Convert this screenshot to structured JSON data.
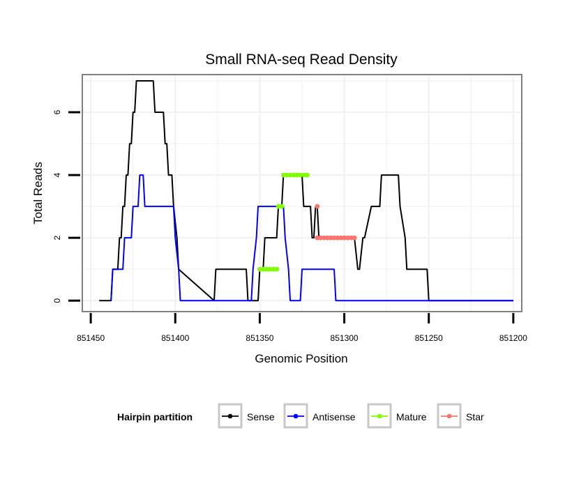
{
  "chart_data": {
    "type": "line",
    "title": "Small RNA-seq Read Density",
    "xlabel": "Genomic Position",
    "ylabel": "Total Reads",
    "x_reversed": true,
    "xlim": [
      851455,
      851195
    ],
    "ylim": [
      -0.35,
      7.2
    ],
    "x_ticks": [
      851450,
      851400,
      851350,
      851300,
      851250,
      851200
    ],
    "x_tick_labels": [
      "851450",
      "851400",
      "851350",
      "851300",
      "851250",
      "851200"
    ],
    "y_ticks": [
      0,
      2,
      4,
      6
    ],
    "y_tick_labels": [
      "0",
      "2",
      "4",
      "6"
    ],
    "grid": true,
    "legend": {
      "title": "Hairpin partition",
      "position": "bottom",
      "entries": [
        "Sense",
        "Antisense",
        "Mature",
        "Star"
      ]
    },
    "series": [
      {
        "name": "Sense",
        "color": "#000000",
        "style": "step-line",
        "x": [
          851445,
          851438,
          851437,
          851434,
          851433,
          851432,
          851431,
          851430,
          851429,
          851428,
          851427,
          851426,
          851425,
          851424,
          851423,
          851422,
          851413,
          851412,
          851407,
          851406,
          851405,
          851404,
          851402,
          851401,
          851399,
          851398,
          851377,
          851376,
          851358,
          851357,
          851351,
          851350,
          851348,
          851347,
          851340,
          851339,
          851337,
          851336,
          851334,
          851333,
          851325,
          851324,
          851320,
          851319,
          851318,
          851317,
          851316,
          851315,
          851313,
          851312,
          851295,
          851294,
          851292,
          851291,
          851289,
          851288,
          851284,
          851283,
          851280,
          851279,
          851278,
          851277,
          851268,
          851267,
          851264,
          851263,
          851251,
          851250,
          851200
        ],
        "y": [
          0,
          0,
          1,
          1,
          2,
          2,
          3,
          3,
          4,
          4,
          5,
          5,
          6,
          6,
          7,
          7,
          7,
          6,
          6,
          5,
          5,
          4,
          4,
          3,
          2,
          1,
          0,
          1,
          1,
          0,
          0,
          1,
          1,
          2,
          2,
          3,
          3,
          4,
          4,
          4,
          4,
          3,
          3,
          2,
          2,
          3,
          3,
          2,
          2,
          2,
          2,
          2,
          1,
          1,
          2,
          2,
          3,
          3,
          3,
          3,
          4,
          4,
          4,
          3,
          2,
          1,
          1,
          0,
          0
        ]
      },
      {
        "name": "Antisense",
        "color": "#0000ff",
        "style": "step-line",
        "x": [
          851438,
          851437,
          851431,
          851430,
          851426,
          851425,
          851422,
          851421,
          851419,
          851418,
          851401,
          851400,
          851398,
          851397,
          851355,
          851354,
          851352,
          851351,
          851343,
          851336,
          851335,
          851333,
          851332,
          851326,
          851325,
          851324,
          851306,
          851305,
          851250,
          851249,
          851200
        ],
        "y": [
          0,
          1,
          1,
          2,
          2,
          3,
          3,
          4,
          4,
          3,
          3,
          2,
          1,
          0,
          0,
          1,
          2,
          3,
          3,
          3,
          2,
          1,
          0,
          0,
          1,
          1,
          1,
          0,
          0,
          0,
          0
        ]
      },
      {
        "name": "Mature",
        "color": "#7fff00",
        "style": "points",
        "x": [
          851350,
          851348,
          851346,
          851344,
          851342,
          851340,
          851339,
          851337,
          851336,
          851334,
          851332,
          851330,
          851328,
          851326,
          851324,
          851322
        ],
        "y": [
          1,
          1,
          1,
          1,
          1,
          1,
          3,
          3,
          4,
          4,
          4,
          4,
          4,
          4,
          4,
          4
        ]
      },
      {
        "name": "Star",
        "color": "#f8766d",
        "style": "points",
        "x": [
          851316,
          851316,
          851314,
          851312,
          851310,
          851308,
          851306,
          851304,
          851302,
          851300,
          851298,
          851296,
          851294
        ],
        "y": [
          3,
          2,
          2,
          2,
          2,
          2,
          2,
          2,
          2,
          2,
          2,
          2,
          2
        ]
      }
    ]
  }
}
